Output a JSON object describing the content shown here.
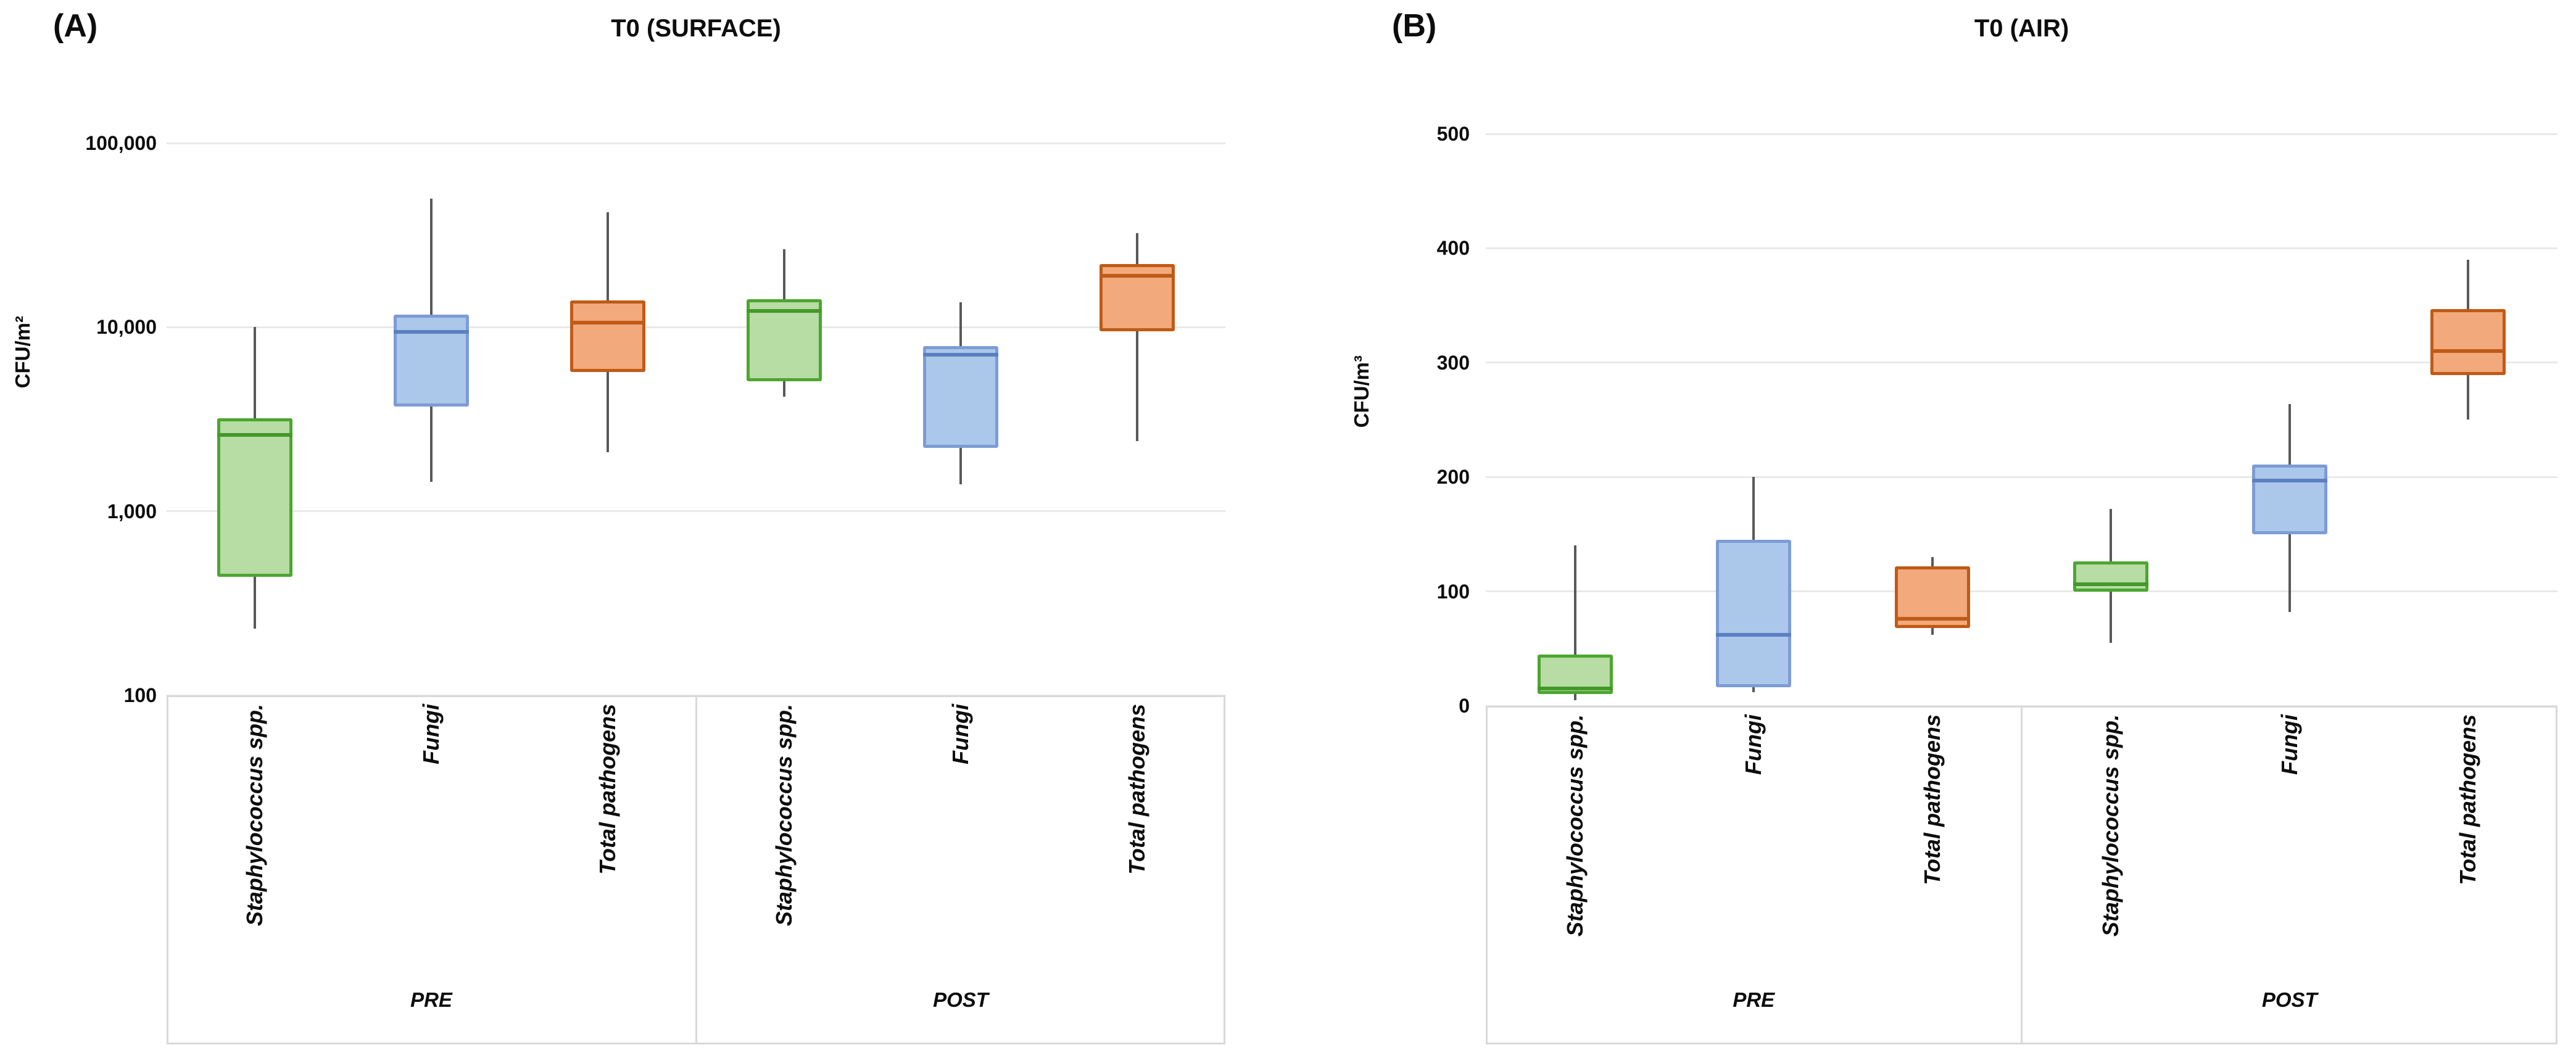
{
  "palette": {
    "green": {
      "fill": "#B7DCA4",
      "border": "#4CA62F",
      "median": "#44982A"
    },
    "blue": {
      "fill": "#ABC7EA",
      "border": "#7D9CD6",
      "median": "#5C7FC2"
    },
    "orange": {
      "fill": "#F2A97B",
      "border": "#C05A17",
      "median": "#C05A17"
    },
    "whisker": "#595959",
    "gridline": "#E9E9E9",
    "frame": "#D9D9D9",
    "text": "#000000"
  },
  "chart_data": [
    {
      "type": "boxplot",
      "panel_label": "(A)",
      "title": "T0 (SURFACE)",
      "ylabel": "CFU/m²",
      "y_scale": "log",
      "ylim": [
        100,
        100000
      ],
      "y_ticks": [
        100000,
        10000,
        1000,
        100
      ],
      "y_tick_labels": [
        "100,000",
        "10,000",
        "1,000",
        "100"
      ],
      "grid": true,
      "legend": "none",
      "group_labels": [
        "PRE",
        "POST"
      ],
      "boxes": [
        {
          "group": "PRE",
          "category": "Staphylococcus spp.",
          "color": "green",
          "whisker_low": 230,
          "q1": 440,
          "median": 2600,
          "q3": 3200,
          "whisker_high": 10000
        },
        {
          "group": "PRE",
          "category": "Fungi",
          "color": "blue",
          "whisker_low": 1450,
          "q1": 3700,
          "median": 9400,
          "q3": 11700,
          "whisker_high": 50000
        },
        {
          "group": "PRE",
          "category": "Total pathogens",
          "color": "orange",
          "whisker_low": 2100,
          "q1": 5700,
          "median": 10600,
          "q3": 14000,
          "whisker_high": 42000
        },
        {
          "group": "POST",
          "category": "Staphylococcus spp.",
          "color": "green",
          "whisker_low": 4200,
          "q1": 5100,
          "median": 12300,
          "q3": 14200,
          "whisker_high": 26500
        },
        {
          "group": "POST",
          "category": "Fungi",
          "color": "blue",
          "whisker_low": 1400,
          "q1": 2200,
          "median": 7100,
          "q3": 7900,
          "whisker_high": 13600
        },
        {
          "group": "POST",
          "category": "Total pathogens",
          "color": "orange",
          "whisker_low": 2400,
          "q1": 9500,
          "median": 19000,
          "q3": 22000,
          "whisker_high": 32500
        }
      ]
    },
    {
      "type": "boxplot",
      "panel_label": "(B)",
      "title": "T0 (AIR)",
      "ylabel": "CFU/m³",
      "y_scale": "linear",
      "ylim": [
        0,
        500
      ],
      "y_ticks": [
        500,
        400,
        300,
        200,
        100,
        0
      ],
      "y_tick_labels": [
        "500",
        "400",
        "300",
        "200",
        "100",
        "0"
      ],
      "grid": true,
      "legend": "none",
      "group_labels": [
        "PRE",
        "POST"
      ],
      "boxes": [
        {
          "group": "PRE",
          "category": "Staphylococcus spp.",
          "color": "green",
          "whisker_low": 5,
          "q1": 10,
          "median": 15,
          "q3": 45,
          "whisker_high": 140
        },
        {
          "group": "PRE",
          "category": "Fungi",
          "color": "blue",
          "whisker_low": 12,
          "q1": 16,
          "median": 62,
          "q3": 145,
          "whisker_high": 200
        },
        {
          "group": "PRE",
          "category": "Total pathogens",
          "color": "orange",
          "whisker_low": 62,
          "q1": 68,
          "median": 76,
          "q3": 122,
          "whisker_high": 130
        },
        {
          "group": "POST",
          "category": "Staphylococcus spp.",
          "color": "green",
          "whisker_low": 55,
          "q1": 100,
          "median": 106,
          "q3": 126,
          "whisker_high": 172
        },
        {
          "group": "POST",
          "category": "Fungi",
          "color": "blue",
          "whisker_low": 82,
          "q1": 150,
          "median": 197,
          "q3": 211,
          "whisker_high": 264
        },
        {
          "group": "POST",
          "category": "Total pathogens",
          "color": "orange",
          "whisker_low": 250,
          "q1": 289,
          "median": 310,
          "q3": 347,
          "whisker_high": 390
        }
      ]
    }
  ]
}
